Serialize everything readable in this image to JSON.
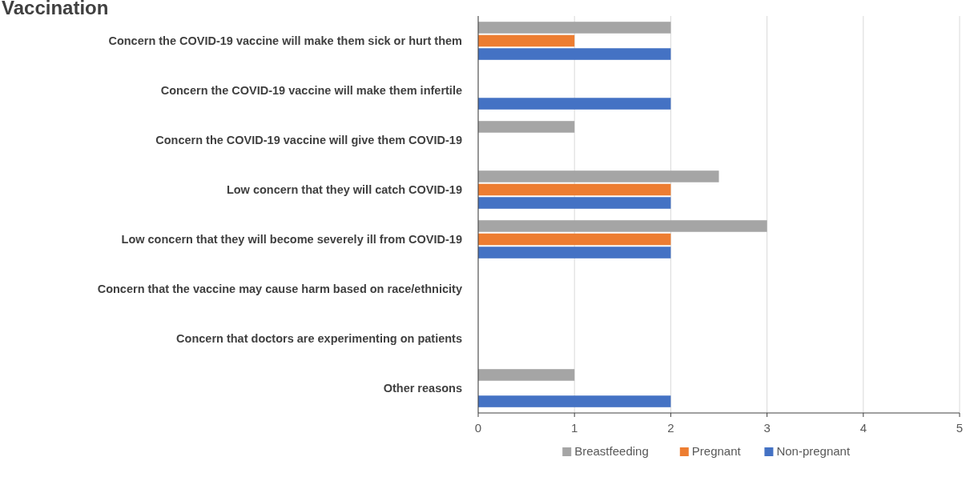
{
  "chart_data": {
    "type": "bar",
    "orientation": "horizontal",
    "title": "Vaccination",
    "categories": [
      "Concern the COVID-19 vaccine will make them sick or hurt them",
      "Concern the COVID-19 vaccine will make them infertile",
      "Concern the COVID-19 vaccine will give them COVID-19",
      "Low concern that they will catch COVID-19",
      "Low concern that they will become severely ill from COVID-19",
      "Concern that the vaccine may cause harm based on race/ethnicity",
      "Concern that doctors are experimenting on patients",
      "Other reasons"
    ],
    "series": [
      {
        "name": "Breastfeeding",
        "color": "#a5a5a5",
        "values": [
          2,
          0,
          1,
          2.5,
          3,
          0,
          0,
          1
        ]
      },
      {
        "name": "Pregnant",
        "color": "#ed7d31",
        "values": [
          1,
          0,
          0,
          2,
          2,
          0,
          0,
          0
        ]
      },
      {
        "name": "Non-pregnant",
        "color": "#4472c4",
        "values": [
          2,
          2,
          0,
          2,
          2,
          0,
          0,
          2
        ]
      }
    ],
    "xlim": [
      0,
      5
    ],
    "xticks": [
      0,
      1,
      2,
      3,
      4,
      5
    ],
    "grid": "x",
    "legend": "bottom"
  }
}
